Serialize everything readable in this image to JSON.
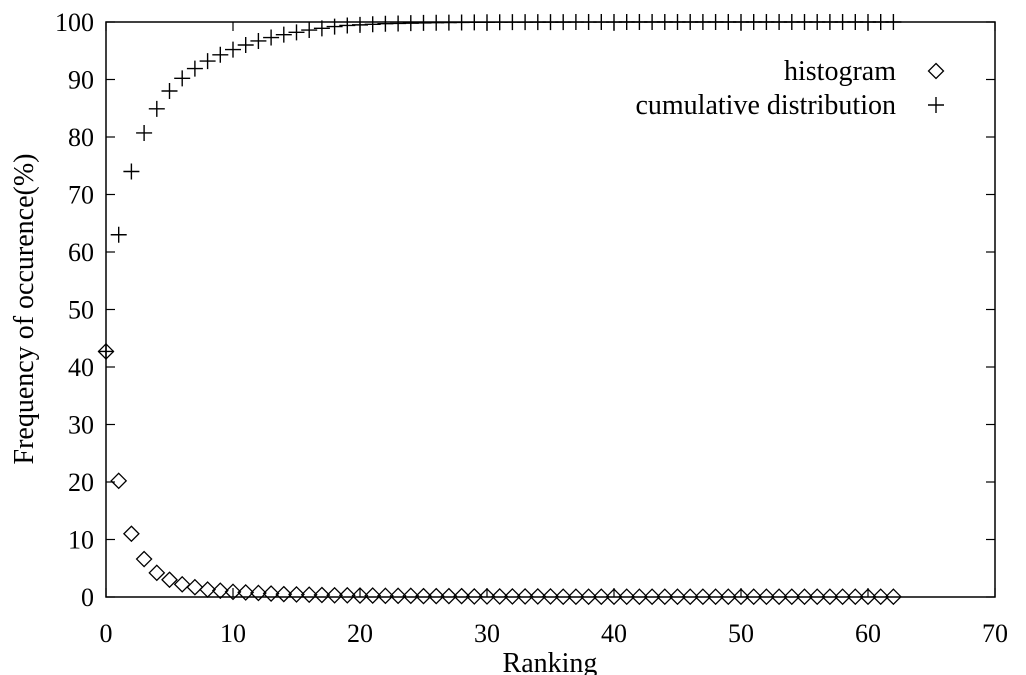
{
  "chart_data": {
    "type": "scatter",
    "title": "",
    "xlabel": "Ranking",
    "ylabel": "Frequency of occurence(%)",
    "xlim": [
      0,
      70
    ],
    "ylim": [
      0,
      100
    ],
    "xticks": [
      0,
      10,
      20,
      30,
      40,
      50,
      60,
      70
    ],
    "yticks": [
      0,
      10,
      20,
      30,
      40,
      50,
      60,
      70,
      80,
      90,
      100
    ],
    "grid": false,
    "legend": "top-right",
    "series": [
      {
        "name": "histogram",
        "marker": "diamond",
        "x": [
          0,
          1,
          2,
          3,
          4,
          5,
          6,
          7,
          8,
          9,
          10,
          11,
          12,
          13,
          14,
          15,
          16,
          17,
          18,
          19,
          20,
          21,
          22,
          23,
          24,
          25,
          26,
          27,
          28,
          29,
          30,
          31,
          32,
          33,
          34,
          35,
          36,
          37,
          38,
          39,
          40,
          41,
          42,
          43,
          44,
          45,
          46,
          47,
          48,
          49,
          50,
          51,
          52,
          53,
          54,
          55,
          56,
          57,
          58,
          59,
          60,
          61,
          62
        ],
        "y": [
          42.7,
          20.2,
          11,
          6.6,
          4.2,
          3,
          2.2,
          1.7,
          1.3,
          1.1,
          0.9,
          0.8,
          0.7,
          0.6,
          0.5,
          0.45,
          0.4,
          0.35,
          0.3,
          0.3,
          0.25,
          0.25,
          0.2,
          0.2,
          0.2,
          0.15,
          0.15,
          0.15,
          0.15,
          0.1,
          0.1,
          0.1,
          0.1,
          0.1,
          0.1,
          0.1,
          0.05,
          0.05,
          0.05,
          0.05,
          0.05,
          0.05,
          0.05,
          0.05,
          0.05,
          0.05,
          0.05,
          0.05,
          0.05,
          0.05,
          0.05,
          0.05,
          0.05,
          0.05,
          0.05,
          0.05,
          0.05,
          0.05,
          0.05,
          0.05,
          0.05,
          0.05,
          0.05
        ]
      },
      {
        "name": "cumulative distribution",
        "marker": "plus",
        "x": [
          0,
          1,
          2,
          3,
          4,
          5,
          6,
          7,
          8,
          9,
          10,
          11,
          12,
          13,
          14,
          15,
          16,
          17,
          18,
          19,
          20,
          21,
          22,
          23,
          24,
          25,
          26,
          27,
          28,
          29,
          30,
          31,
          32,
          33,
          34,
          35,
          36,
          37,
          38,
          39,
          40,
          41,
          42,
          43,
          44,
          45,
          46,
          47,
          48,
          49,
          50,
          51,
          52,
          53,
          54,
          55,
          56,
          57,
          58,
          59,
          60,
          61,
          62
        ],
        "y": [
          42.7,
          63,
          74,
          80.7,
          84.9,
          88,
          90.2,
          91.9,
          93.2,
          94.3,
          95.2,
          96,
          96.7,
          97.3,
          97.8,
          98.2,
          98.6,
          98.9,
          99.2,
          99.4,
          99.5,
          99.6,
          99.7,
          99.75,
          99.8,
          99.85,
          99.88,
          99.9,
          99.92,
          99.94,
          99.95,
          99.96,
          99.97,
          99.97,
          99.98,
          99.98,
          99.98,
          99.99,
          99.99,
          99.99,
          99.99,
          100,
          100,
          100,
          100,
          100,
          100,
          100,
          100,
          100,
          100,
          100,
          100,
          100,
          100,
          100,
          100,
          100,
          100,
          100,
          100,
          100,
          100
        ]
      }
    ]
  }
}
